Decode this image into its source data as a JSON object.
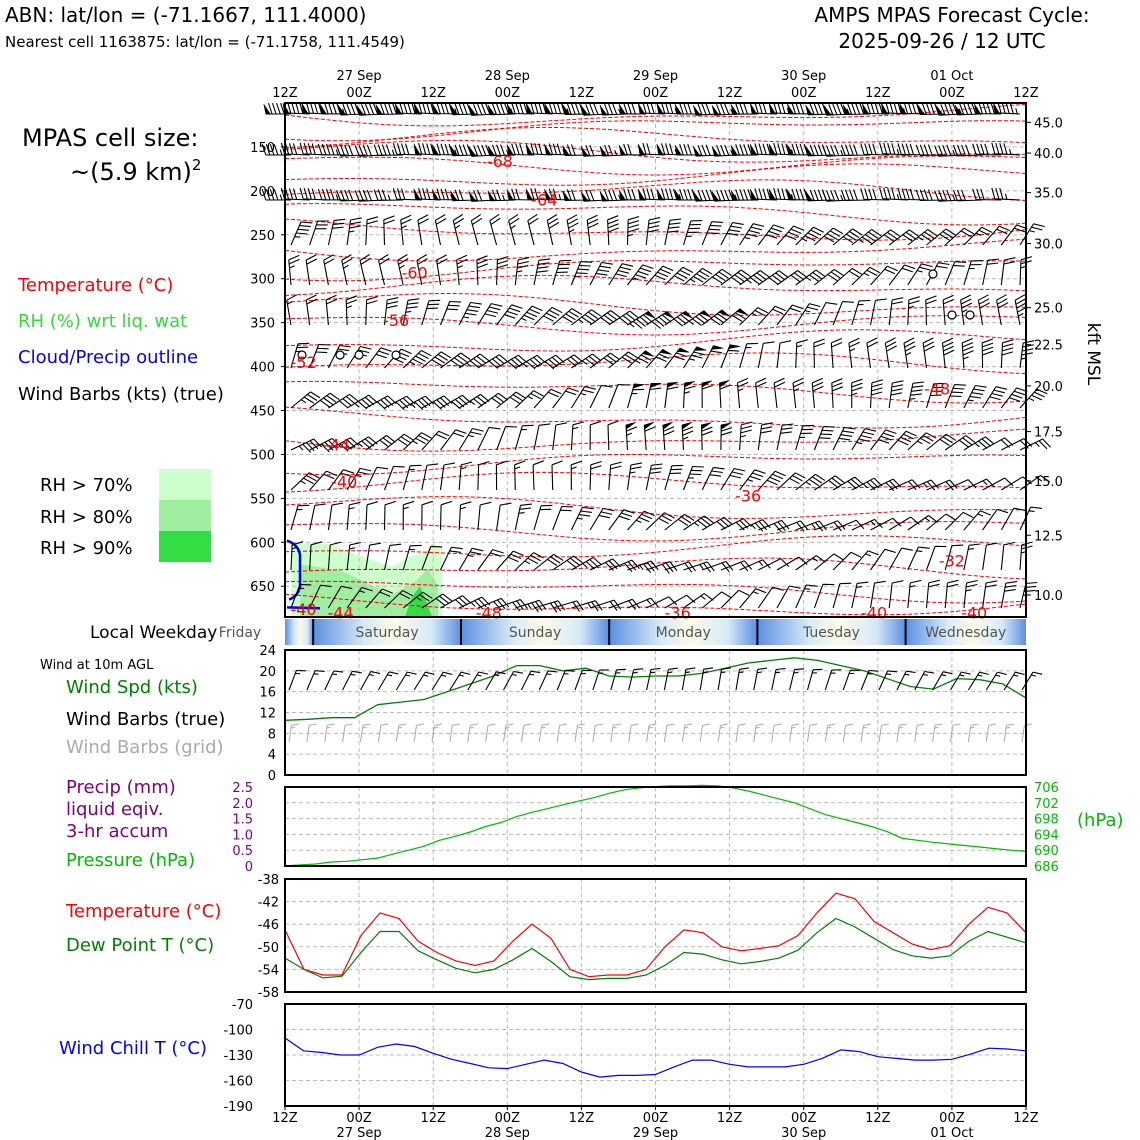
{
  "header": {
    "station_line": "ABN: lat/lon = (-71.1667, 111.4000)",
    "cell_line": "Nearest cell 1163875: lat/lon = (-71.1758, 111.4549)",
    "cycle_title": "AMPS MPAS Forecast Cycle:",
    "cycle_time": "2025-09-26 / 12 UTC"
  },
  "legend": {
    "cell_size_label": "MPAS cell size:",
    "cell_size_value": "~(5.9 km)",
    "cell_size_sup": "2",
    "temperature": "Temperature (°C)",
    "rh": "RH (%) wrt liq. wat",
    "cloud": "Cloud/Precip outline",
    "barbs": "Wind Barbs (kts) (true)",
    "rh70": "RH > 70%",
    "rh80": "RH > 80%",
    "rh90": "RH > 90%",
    "local_weekday": "Local Weekday",
    "wind_10m": "Wind at 10m AGL",
    "wind_spd": "Wind Spd (kts)",
    "wind_barbs_true": "Wind Barbs (true)",
    "wind_barbs_grid": "Wind Barbs (grid)",
    "precip1": "Precip (mm)",
    "precip2": "liquid eqiv.",
    "precip3": "3-hr accum",
    "pressure": "Pressure (hPa)",
    "temp2": "Temperature (°C)",
    "dew": "Dew Point T (°C)",
    "windchill": "Wind Chill T (°C)",
    "pressure_unit": "(hPa)",
    "kft": "kft MSL"
  },
  "colors": {
    "temp": "#ff0000",
    "green": "#008000",
    "pgreen": "#00bb00",
    "blue": "#0000ff",
    "purple": "#800080",
    "rh70": "#ccffcc",
    "rh80": "#a0eea0",
    "rh90": "#33dd44",
    "grid": "#bbbbbb"
  },
  "time_axis": {
    "ticks": [
      "12Z",
      "00Z",
      "12Z",
      "00Z",
      "12Z",
      "00Z",
      "12Z",
      "00Z",
      "12Z",
      "00Z",
      "12Z"
    ],
    "dates": [
      "27 Sep",
      "28 Sep",
      "29 Sep",
      "30 Sep",
      "01 Oct"
    ]
  },
  "weekdays": [
    "Friday",
    "Saturday",
    "Sunday",
    "Monday",
    "Tuesday",
    "Wednesday"
  ],
  "chart_data": [
    {
      "id": "upper_air",
      "type": "contour",
      "pressure_ticks": [
        150,
        200,
        250,
        300,
        350,
        400,
        450,
        500,
        550,
        600,
        650
      ],
      "pressure_range": [
        100,
        685
      ],
      "height_ticks": [
        "45.0",
        "40.0",
        "35.0",
        "30.0",
        "25.0",
        "22.5",
        "20.0",
        "17.5",
        "15.0",
        "12.5",
        "10.0"
      ],
      "height_tick_pressures": [
        122,
        157,
        202,
        260,
        333,
        375,
        422,
        474,
        530,
        592,
        660
      ],
      "temp_labels": [
        {
          "text": "-68",
          "t": 0.29,
          "p": 167
        },
        {
          "text": "-64",
          "t": 0.35,
          "p": 211
        },
        {
          "text": "-60",
          "t": 0.175,
          "p": 294
        },
        {
          "text": "-56",
          "t": 0.15,
          "p": 348
        },
        {
          "text": "-52",
          "t": 0.025,
          "p": 396
        },
        {
          "text": "-48",
          "t": 0.88,
          "p": 426
        },
        {
          "text": "-44",
          "t": 0.07,
          "p": 490
        },
        {
          "text": "-40",
          "t": 0.08,
          "p": 532
        },
        {
          "text": "-36",
          "t": 0.625,
          "p": 548
        },
        {
          "text": "-32",
          "t": 0.9,
          "p": 622
        },
        {
          "text": "-40",
          "t": 0.025,
          "p": 677
        },
        {
          "text": "-44",
          "t": 0.075,
          "p": 681
        },
        {
          "text": "-48",
          "t": 0.275,
          "p": 681
        },
        {
          "text": "-36",
          "t": 0.53,
          "p": 681
        },
        {
          "text": "-40",
          "t": 0.795,
          "p": 681
        },
        {
          "text": "-40",
          "t": 0.93,
          "p": 681
        }
      ]
    },
    {
      "id": "surface_wind",
      "type": "line",
      "title": "Wind Spd (kts)",
      "ylim": [
        0,
        24
      ],
      "yticks": [
        0,
        4,
        8,
        12,
        16,
        20,
        24
      ],
      "values": [
        10.5,
        10.7,
        11,
        11,
        13.5,
        14,
        14.5,
        16,
        17.5,
        19,
        21,
        21,
        20,
        20.5,
        19,
        18.8,
        19,
        19,
        19.5,
        20.5,
        21.5,
        22,
        22.5,
        22,
        21,
        20,
        18.5,
        17,
        16.5,
        18.5,
        18.3,
        17.5,
        14.8
      ]
    },
    {
      "id": "precip_pressure",
      "type": "line",
      "title": "Pressure (hPa)",
      "precip_ylim": [
        0,
        2.5
      ],
      "precip_ticks": [
        "0",
        "0.5",
        "1.0",
        "1.5",
        "2.0",
        "2.5"
      ],
      "pressure_ylim": [
        686,
        706
      ],
      "pressure_ticks": [
        686,
        690,
        694,
        698,
        702,
        706
      ],
      "pressure_values": [
        686,
        686.3,
        686.5,
        687,
        687.2,
        687.6,
        688,
        689,
        690,
        691,
        692.5,
        693.5,
        694.6,
        696,
        697,
        698.5,
        699.6,
        700.5,
        701.5,
        702.4,
        703.3,
        704.4,
        705.3,
        705.8,
        706.1,
        706.3,
        706.3,
        706.4,
        706.3,
        705.8,
        705,
        704,
        703,
        702,
        700.5,
        699,
        698,
        697,
        696,
        694.7,
        693,
        692.5,
        692,
        691.6,
        691.2,
        690.8,
        690.4,
        690,
        689.7
      ]
    },
    {
      "id": "temp_dew",
      "type": "line",
      "ylim": [
        -58,
        -38
      ],
      "yticks": [
        -58,
        -54,
        -50,
        -46,
        -42,
        -38
      ],
      "temperature": [
        -47,
        -54,
        -55,
        -55,
        -48,
        -44,
        -45,
        -49,
        -51,
        -52.5,
        -53.3,
        -52.5,
        -49,
        -46,
        -48.5,
        -54,
        -55.3,
        -55,
        -55,
        -54,
        -50,
        -47,
        -47.5,
        -50,
        -50.7,
        -50.3,
        -49.8,
        -48,
        -44,
        -40.5,
        -41.5,
        -45.5,
        -47.5,
        -49.5,
        -50.5,
        -49.8,
        -46,
        -43,
        -44,
        -47.5
      ],
      "dew_point": [
        -52,
        -54,
        -55.5,
        -55.2,
        -51,
        -47.3,
        -47.3,
        -50.7,
        -52.3,
        -53.8,
        -54.6,
        -54,
        -52.3,
        -50.3,
        -52.6,
        -55.3,
        -55.8,
        -55.6,
        -55.6,
        -55,
        -53.3,
        -51,
        -51.3,
        -52.3,
        -53,
        -52.6,
        -52,
        -50.6,
        -47.5,
        -45,
        -46.5,
        -48.5,
        -50.5,
        -51.6,
        -52,
        -51.6,
        -49,
        -47.3,
        -48.3,
        -49.3
      ]
    },
    {
      "id": "wind_chill",
      "type": "line",
      "title": "Wind Chill T (°C)",
      "ylim": [
        -190,
        -70
      ],
      "yticks": [
        -70,
        -100,
        -130,
        -160,
        -190
      ],
      "values": [
        -110,
        -125,
        -127,
        -130,
        -130,
        -121,
        -117,
        -120,
        -128,
        -135,
        -140,
        -145,
        -146,
        -141,
        -136,
        -140,
        -150,
        -156,
        -154,
        -154,
        -153,
        -144,
        -136,
        -136,
        -141,
        -144,
        -144,
        -144,
        -141,
        -134,
        -124,
        -126,
        -132,
        -134,
        -136,
        -136,
        -135,
        -129,
        -122,
        -123,
        -125
      ]
    }
  ]
}
